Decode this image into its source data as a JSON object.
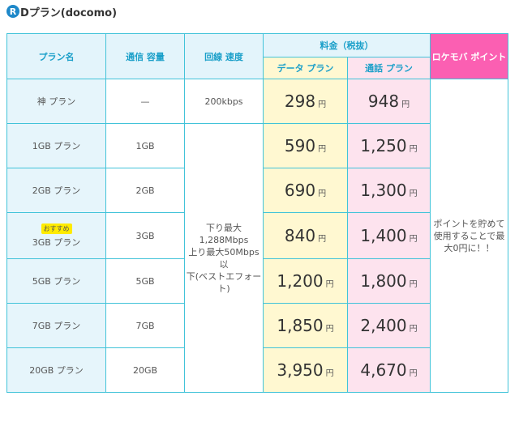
{
  "page": {
    "title_logo": "R",
    "title_text": "Dプラン(docomo)"
  },
  "table": {
    "headers": {
      "plan_name": "プラン名",
      "capacity": "通信 容量",
      "speed": "回線 速度",
      "fee": "料金（税抜）",
      "data_plan": "データ プラン",
      "call_plan": "通話 プラン",
      "rocket_points": "ロケモバ ポイント"
    },
    "speed_note": {
      "line1": "下り最大",
      "line2": "1,288Mbps",
      "line3": "上り最大50Mbps以",
      "line4": "下(ベストエフォー",
      "line5": "ト)"
    },
    "points_note": {
      "line1": "ポイントを貯めて",
      "line2": "使用することで最",
      "line3": "大0円に！！"
    },
    "yen": "円",
    "recommend_badge": "おすすめ",
    "rows": [
      {
        "name": "神 プラン",
        "capacity": "—",
        "speed": "200kbps",
        "data_price": "298",
        "call_price": "948"
      },
      {
        "name": "1GB プラン",
        "capacity": "1GB",
        "data_price": "590",
        "call_price": "1,250"
      },
      {
        "name": "2GB プラン",
        "capacity": "2GB",
        "data_price": "690",
        "call_price": "1,300"
      },
      {
        "name": "3GB プラン",
        "capacity": "3GB",
        "data_price": "840",
        "call_price": "1,400"
      },
      {
        "name": "5GB プラン",
        "capacity": "5GB",
        "data_price": "1,200",
        "call_price": "1,800"
      },
      {
        "name": "7GB プラン",
        "capacity": "7GB",
        "data_price": "1,850",
        "call_price": "2,400"
      },
      {
        "name": "20GB プラン",
        "capacity": "20GB",
        "data_price": "3,950",
        "call_price": "4,670"
      }
    ]
  }
}
